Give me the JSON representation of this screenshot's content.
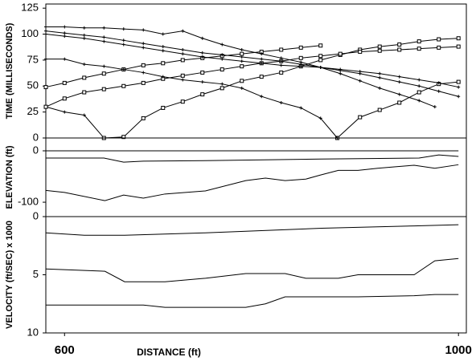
{
  "chart_data": [
    {
      "type": "line",
      "ylabel": "TIME (MILLISECONDS)",
      "xlim": [
        581,
        1008
      ],
      "ylim": [
        0,
        129
      ],
      "yticks": [
        0,
        25,
        50,
        75,
        100,
        125
      ],
      "series": [
        {
          "color": "#000",
          "marker": "plus",
          "x": [
            581,
            600,
            620,
            640
          ],
          "values": [
            30,
            25,
            22,
            0
          ]
        },
        {
          "color": "#000",
          "marker": "square",
          "x": [
            640,
            660,
            680,
            700,
            720,
            740,
            760,
            780,
            800,
            820,
            840,
            860,
            880,
            900,
            920,
            940,
            960,
            980,
            1000
          ],
          "values": [
            0,
            1,
            19,
            29,
            35,
            42,
            48,
            55,
            59,
            63,
            69,
            75,
            80,
            85,
            88,
            90,
            93,
            95,
            96
          ]
        },
        {
          "color": "#000",
          "marker": "square",
          "x": [
            581,
            600,
            620,
            640,
            660,
            680,
            700,
            720,
            740,
            760,
            780,
            800,
            820,
            840,
            860
          ],
          "values": [
            49,
            53,
            58,
            62,
            66,
            70,
            72,
            75,
            77,
            79,
            81,
            83,
            85,
            87,
            89
          ]
        },
        {
          "color": "#000",
          "marker": "square",
          "x": [
            581,
            600,
            620,
            640,
            660,
            680,
            700,
            720,
            740,
            760,
            780,
            800,
            820,
            840,
            860,
            880,
            900,
            920,
            940,
            960,
            980,
            1000
          ],
          "values": [
            30,
            38,
            44,
            47,
            50,
            53,
            57,
            60,
            63,
            66,
            69,
            72,
            74,
            77,
            79,
            81,
            83,
            84,
            85,
            86,
            87,
            88
          ]
        },
        {
          "color": "#000",
          "marker": "square",
          "x": [
            877,
            900,
            920,
            940,
            960,
            980,
            1000
          ],
          "values": [
            0,
            20,
            27,
            34,
            44,
            52,
            54
          ]
        },
        {
          "color": "#000",
          "marker": "plus",
          "x": [
            581,
            600,
            620,
            640,
            660,
            680,
            700,
            720,
            740,
            760,
            780,
            800,
            820,
            840,
            860,
            880,
            900,
            920,
            940,
            960,
            976
          ],
          "values": [
            107,
            107,
            106,
            106,
            105,
            104,
            100,
            103,
            96,
            90,
            85,
            81,
            77,
            73,
            68,
            62,
            55,
            48,
            42,
            36,
            30
          ]
        },
        {
          "color": "#000",
          "marker": "plus",
          "x": [
            581,
            600,
            620,
            640,
            660,
            680,
            700,
            720,
            740,
            760,
            780,
            800,
            820,
            840,
            860,
            880,
            900,
            920,
            940,
            960,
            980,
            1000
          ],
          "values": [
            103,
            101,
            99,
            97,
            94,
            91,
            88,
            85,
            82,
            80,
            78,
            76,
            74,
            71,
            68,
            65,
            62,
            58,
            54,
            50,
            45,
            40
          ]
        },
        {
          "color": "#000",
          "marker": "plus",
          "x": [
            581,
            600,
            620,
            640,
            660,
            680,
            700,
            720,
            740,
            760,
            780,
            800,
            820,
            840,
            860,
            880,
            900,
            920,
            940,
            960,
            980,
            1000
          ],
          "values": [
            100,
            98,
            96,
            93,
            90,
            87,
            84,
            81,
            78,
            76,
            74,
            72,
            70,
            69,
            68,
            66,
            64,
            62,
            59,
            56,
            53,
            49
          ]
        },
        {
          "color": "#000",
          "marker": "plus",
          "x": [
            581,
            600,
            620,
            640,
            660,
            680,
            700,
            720,
            740,
            760,
            780,
            800,
            820,
            840,
            860,
            877
          ],
          "values": [
            76,
            76,
            71,
            69,
            66,
            63,
            59,
            56,
            54,
            52,
            48,
            40,
            34,
            29,
            19,
            0
          ]
        }
      ]
    },
    {
      "type": "line",
      "ylabel": "ELEVATION (ft)",
      "xlim": [
        581,
        1008
      ],
      "ylim": [
        -128,
        25
      ],
      "yticks": [
        0,
        -100
      ],
      "series": [
        {
          "color": "#000",
          "x": [
            581,
            1000
          ],
          "values": [
            0,
            0
          ]
        },
        {
          "color": "#000",
          "x": [
            581,
            640,
            660,
            680,
            750,
            860,
            960,
            980,
            1000
          ],
          "values": [
            -14,
            -14,
            -22,
            -20,
            -19,
            -16,
            -14,
            -8,
            -11
          ]
        },
        {
          "color": "#000",
          "x": [
            581,
            600,
            641,
            660,
            680,
            702,
            743,
            784,
            804,
            824,
            845,
            860,
            878,
            898,
            918,
            936,
            955,
            976,
            1000
          ],
          "values": [
            -77,
            -81,
            -97,
            -86,
            -92,
            -84,
            -78,
            -58,
            -53,
            -58,
            -55,
            -47,
            -38,
            -38,
            -34,
            -31,
            -28,
            -34,
            -27
          ]
        }
      ]
    },
    {
      "type": "line",
      "ylabel": "VELOCITY (ft/SEC) x 1000",
      "xlabel": "DISTANCE (ft)",
      "xlim": [
        581,
        1008
      ],
      "xticks": [
        600,
        1000
      ],
      "ylim": [
        10,
        0
      ],
      "yticks": [
        0,
        5,
        10
      ],
      "series": [
        {
          "color": "#000",
          "x": [
            581,
            620,
            661,
            743,
            861,
            955,
            1000
          ],
          "values": [
            1.4,
            1.6,
            1.6,
            1.4,
            1.0,
            0.8,
            0.7
          ]
        },
        {
          "color": "#000",
          "x": [
            581,
            641,
            661,
            702,
            743,
            784,
            824,
            845,
            878,
            898,
            955,
            976,
            1000
          ],
          "values": [
            4.5,
            4.7,
            5.6,
            5.6,
            5.3,
            4.9,
            4.9,
            5.3,
            5.3,
            5.0,
            5.0,
            3.8,
            3.6
          ]
        },
        {
          "color": "#000",
          "x": [
            581,
            680,
            702,
            784,
            804,
            824,
            898,
            955,
            976,
            1000
          ],
          "values": [
            7.6,
            7.6,
            7.8,
            7.8,
            7.5,
            6.9,
            6.9,
            6.8,
            6.7,
            6.7
          ]
        }
      ]
    }
  ]
}
